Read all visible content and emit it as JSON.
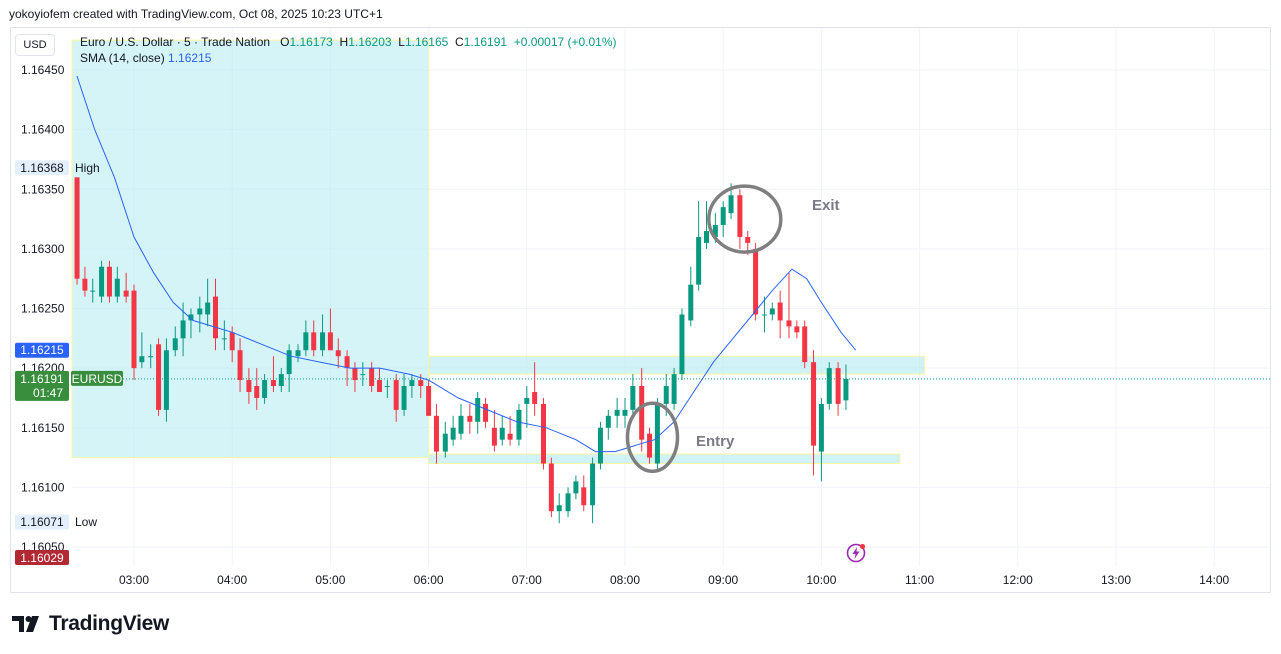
{
  "header": {
    "credit": "yokoyiofem created with TradingView.com, Oct 08, 2025 10:23 UTC+1"
  },
  "currency_button": "USD",
  "legend": {
    "symbol": "Euro / U.S. Dollar · 5 · Trade Nation",
    "open_label": "O",
    "open": "1.16173",
    "high_label": "H",
    "high": "1.16203",
    "low_label": "L",
    "low": "1.16165",
    "close_label": "C",
    "close": "1.16191",
    "change": "+0.00017 (+0.01%)",
    "sma_label": "SMA (14, close)",
    "sma_value": "1.16215"
  },
  "price_tags": {
    "high_value": "1.16368",
    "high_text": "High",
    "low_value": "1.16071",
    "low_text": "Low",
    "sma_value": "1.16215",
    "last_value": "1.16191",
    "last_symbol": "EURUSD",
    "countdown": "01:47",
    "bottom_value": "1.16029"
  },
  "annotations": {
    "exit": "Exit",
    "entry": "Entry"
  },
  "footer": {
    "brand": "TradingView"
  },
  "colors": {
    "up": "#089981",
    "down": "#f23645",
    "sma": "#2962ff",
    "zone": "#b2ebf2",
    "grid": "#f0f3fa"
  },
  "chart_data": {
    "type": "candlestick",
    "title": "Euro / U.S. Dollar · 5 · Trade Nation",
    "ylim": [
      1.16029,
      1.16475
    ],
    "y_ticks": [
      "1.16450",
      "1.16400",
      "1.16350",
      "1.16300",
      "1.16250",
      "1.16200",
      "1.16150",
      "1.16100",
      "1.16050"
    ],
    "x_ticks": [
      "03:00",
      "04:00",
      "05:00",
      "06:00",
      "07:00",
      "08:00",
      "09:00",
      "10:00",
      "11:00",
      "12:00",
      "13:00",
      "14:00"
    ],
    "x_range_hours": [
      2.6,
      14.45
    ],
    "grid": true,
    "candles": [
      {
        "t": 2.42,
        "o": 1.1636,
        "h": 1.1636,
        "l": 1.1627,
        "c": 1.16275
      },
      {
        "t": 2.5,
        "o": 1.16275,
        "h": 1.16285,
        "l": 1.1626,
        "c": 1.16265
      },
      {
        "t": 2.58,
        "o": 1.16265,
        "h": 1.16275,
        "l": 1.16255,
        "c": 1.16265
      },
      {
        "t": 2.67,
        "o": 1.1626,
        "h": 1.1629,
        "l": 1.16255,
        "c": 1.16285
      },
      {
        "t": 2.75,
        "o": 1.16285,
        "h": 1.1629,
        "l": 1.16255,
        "c": 1.1626
      },
      {
        "t": 2.83,
        "o": 1.1626,
        "h": 1.16285,
        "l": 1.16255,
        "c": 1.16275
      },
      {
        "t": 2.92,
        "o": 1.16265,
        "h": 1.1628,
        "l": 1.16255,
        "c": 1.1626
      },
      {
        "t": 3.0,
        "o": 1.16265,
        "h": 1.1627,
        "l": 1.1619,
        "c": 1.162
      },
      {
        "t": 3.08,
        "o": 1.16205,
        "h": 1.1623,
        "l": 1.162,
        "c": 1.1621
      },
      {
        "t": 3.17,
        "o": 1.1621,
        "h": 1.1622,
        "l": 1.162,
        "c": 1.1621
      },
      {
        "t": 3.25,
        "o": 1.1622,
        "h": 1.16225,
        "l": 1.1616,
        "c": 1.16165
      },
      {
        "t": 3.33,
        "o": 1.16165,
        "h": 1.16225,
        "l": 1.16155,
        "c": 1.16215
      },
      {
        "t": 3.42,
        "o": 1.16215,
        "h": 1.16235,
        "l": 1.1621,
        "c": 1.16225
      },
      {
        "t": 3.5,
        "o": 1.16225,
        "h": 1.16255,
        "l": 1.1621,
        "c": 1.1624
      },
      {
        "t": 3.58,
        "o": 1.1624,
        "h": 1.1625,
        "l": 1.16225,
        "c": 1.16245
      },
      {
        "t": 3.67,
        "o": 1.16245,
        "h": 1.1626,
        "l": 1.1623,
        "c": 1.1625
      },
      {
        "t": 3.75,
        "o": 1.16245,
        "h": 1.16275,
        "l": 1.16235,
        "c": 1.16255
      },
      {
        "t": 3.83,
        "o": 1.1626,
        "h": 1.16275,
        "l": 1.16215,
        "c": 1.16225
      },
      {
        "t": 3.92,
        "o": 1.16225,
        "h": 1.1624,
        "l": 1.16215,
        "c": 1.16225
      },
      {
        "t": 4.0,
        "o": 1.1623,
        "h": 1.16235,
        "l": 1.16205,
        "c": 1.16215
      },
      {
        "t": 4.08,
        "o": 1.16215,
        "h": 1.16225,
        "l": 1.1618,
        "c": 1.1619
      },
      {
        "t": 4.17,
        "o": 1.1619,
        "h": 1.162,
        "l": 1.1617,
        "c": 1.1618
      },
      {
        "t": 4.25,
        "o": 1.16185,
        "h": 1.162,
        "l": 1.16165,
        "c": 1.16175
      },
      {
        "t": 4.33,
        "o": 1.16175,
        "h": 1.16195,
        "l": 1.1617,
        "c": 1.1619
      },
      {
        "t": 4.42,
        "o": 1.1619,
        "h": 1.1621,
        "l": 1.1618,
        "c": 1.16185
      },
      {
        "t": 4.5,
        "o": 1.16185,
        "h": 1.162,
        "l": 1.1618,
        "c": 1.16195
      },
      {
        "t": 4.58,
        "o": 1.16195,
        "h": 1.1622,
        "l": 1.1618,
        "c": 1.16215
      },
      {
        "t": 4.67,
        "o": 1.1621,
        "h": 1.1622,
        "l": 1.16205,
        "c": 1.16215
      },
      {
        "t": 4.75,
        "o": 1.16215,
        "h": 1.1624,
        "l": 1.1621,
        "c": 1.1623
      },
      {
        "t": 4.83,
        "o": 1.1623,
        "h": 1.1624,
        "l": 1.1621,
        "c": 1.16215
      },
      {
        "t": 4.92,
        "o": 1.16215,
        "h": 1.16245,
        "l": 1.1621,
        "c": 1.1623
      },
      {
        "t": 5.0,
        "o": 1.1623,
        "h": 1.1625,
        "l": 1.16215,
        "c": 1.16215
      },
      {
        "t": 5.08,
        "o": 1.16215,
        "h": 1.16225,
        "l": 1.162,
        "c": 1.1621
      },
      {
        "t": 5.17,
        "o": 1.1621,
        "h": 1.16215,
        "l": 1.16185,
        "c": 1.162
      },
      {
        "t": 5.25,
        "o": 1.162,
        "h": 1.16205,
        "l": 1.1618,
        "c": 1.1619
      },
      {
        "t": 5.33,
        "o": 1.16195,
        "h": 1.16205,
        "l": 1.16185,
        "c": 1.16195
      },
      {
        "t": 5.42,
        "o": 1.162,
        "h": 1.16205,
        "l": 1.1618,
        "c": 1.16185
      },
      {
        "t": 5.5,
        "o": 1.1619,
        "h": 1.162,
        "l": 1.1618,
        "c": 1.1618
      },
      {
        "t": 5.58,
        "o": 1.16185,
        "h": 1.1619,
        "l": 1.16175,
        "c": 1.16185
      },
      {
        "t": 5.67,
        "o": 1.1619,
        "h": 1.16195,
        "l": 1.16155,
        "c": 1.16165
      },
      {
        "t": 5.75,
        "o": 1.16165,
        "h": 1.16195,
        "l": 1.1616,
        "c": 1.16185
      },
      {
        "t": 5.83,
        "o": 1.16185,
        "h": 1.16195,
        "l": 1.16175,
        "c": 1.1619
      },
      {
        "t": 5.92,
        "o": 1.1619,
        "h": 1.16195,
        "l": 1.16175,
        "c": 1.16185
      },
      {
        "t": 6.0,
        "o": 1.16185,
        "h": 1.1619,
        "l": 1.1616,
        "c": 1.1616
      },
      {
        "t": 6.08,
        "o": 1.1616,
        "h": 1.1617,
        "l": 1.1612,
        "c": 1.1613
      },
      {
        "t": 6.17,
        "o": 1.1613,
        "h": 1.16155,
        "l": 1.16125,
        "c": 1.16145
      },
      {
        "t": 6.25,
        "o": 1.1614,
        "h": 1.1616,
        "l": 1.16135,
        "c": 1.1615
      },
      {
        "t": 6.33,
        "o": 1.16145,
        "h": 1.1617,
        "l": 1.1614,
        "c": 1.1616
      },
      {
        "t": 6.42,
        "o": 1.1616,
        "h": 1.1617,
        "l": 1.16145,
        "c": 1.16155
      },
      {
        "t": 6.5,
        "o": 1.16155,
        "h": 1.1618,
        "l": 1.16145,
        "c": 1.16175
      },
      {
        "t": 6.58,
        "o": 1.1617,
        "h": 1.16175,
        "l": 1.1615,
        "c": 1.16155
      },
      {
        "t": 6.67,
        "o": 1.1615,
        "h": 1.16165,
        "l": 1.1613,
        "c": 1.16135
      },
      {
        "t": 6.75,
        "o": 1.1614,
        "h": 1.1616,
        "l": 1.16135,
        "c": 1.1615
      },
      {
        "t": 6.83,
        "o": 1.16145,
        "h": 1.1616,
        "l": 1.16135,
        "c": 1.1614
      },
      {
        "t": 6.92,
        "o": 1.1614,
        "h": 1.1617,
        "l": 1.16135,
        "c": 1.16165
      },
      {
        "t": 7.0,
        "o": 1.1617,
        "h": 1.16185,
        "l": 1.1615,
        "c": 1.16175
      },
      {
        "t": 7.08,
        "o": 1.1618,
        "h": 1.16205,
        "l": 1.1616,
        "c": 1.1617
      },
      {
        "t": 7.17,
        "o": 1.1617,
        "h": 1.16175,
        "l": 1.16115,
        "c": 1.1612
      },
      {
        "t": 7.25,
        "o": 1.1612,
        "h": 1.16125,
        "l": 1.16075,
        "c": 1.1608
      },
      {
        "t": 7.33,
        "o": 1.1608,
        "h": 1.16095,
        "l": 1.1607,
        "c": 1.16085
      },
      {
        "t": 7.42,
        "o": 1.1608,
        "h": 1.161,
        "l": 1.16075,
        "c": 1.16095
      },
      {
        "t": 7.5,
        "o": 1.16095,
        "h": 1.1611,
        "l": 1.1609,
        "c": 1.16105
      },
      {
        "t": 7.58,
        "o": 1.161,
        "h": 1.1611,
        "l": 1.1608,
        "c": 1.16085
      },
      {
        "t": 7.67,
        "o": 1.16085,
        "h": 1.16125,
        "l": 1.1607,
        "c": 1.1612
      },
      {
        "t": 7.75,
        "o": 1.1612,
        "h": 1.16155,
        "l": 1.16115,
        "c": 1.1615
      },
      {
        "t": 7.83,
        "o": 1.1615,
        "h": 1.16165,
        "l": 1.1614,
        "c": 1.1616
      },
      {
        "t": 7.92,
        "o": 1.1616,
        "h": 1.16175,
        "l": 1.1615,
        "c": 1.16165
      },
      {
        "t": 8.0,
        "o": 1.1616,
        "h": 1.16175,
        "l": 1.1615,
        "c": 1.16165
      },
      {
        "t": 8.08,
        "o": 1.16165,
        "h": 1.16195,
        "l": 1.1616,
        "c": 1.16185
      },
      {
        "t": 8.17,
        "o": 1.16185,
        "h": 1.162,
        "l": 1.1613,
        "c": 1.1614
      },
      {
        "t": 8.25,
        "o": 1.16145,
        "h": 1.1615,
        "l": 1.1612,
        "c": 1.16125
      },
      {
        "t": 8.33,
        "o": 1.1612,
        "h": 1.16175,
        "l": 1.16115,
        "c": 1.1617
      },
      {
        "t": 8.42,
        "o": 1.1617,
        "h": 1.16195,
        "l": 1.1616,
        "c": 1.16185
      },
      {
        "t": 8.5,
        "o": 1.1617,
        "h": 1.162,
        "l": 1.16165,
        "c": 1.16195
      },
      {
        "t": 8.58,
        "o": 1.16195,
        "h": 1.1625,
        "l": 1.1619,
        "c": 1.16245
      },
      {
        "t": 8.67,
        "o": 1.1624,
        "h": 1.16285,
        "l": 1.16235,
        "c": 1.1627
      },
      {
        "t": 8.75,
        "o": 1.1627,
        "h": 1.1634,
        "l": 1.16265,
        "c": 1.1631
      },
      {
        "t": 8.83,
        "o": 1.16305,
        "h": 1.1634,
        "l": 1.163,
        "c": 1.16315
      },
      {
        "t": 8.92,
        "o": 1.1631,
        "h": 1.1633,
        "l": 1.16305,
        "c": 1.1632
      },
      {
        "t": 9.0,
        "o": 1.1632,
        "h": 1.1634,
        "l": 1.1631,
        "c": 1.16335
      },
      {
        "t": 9.08,
        "o": 1.1633,
        "h": 1.16355,
        "l": 1.16325,
        "c": 1.16345
      },
      {
        "t": 9.17,
        "o": 1.16345,
        "h": 1.1635,
        "l": 1.163,
        "c": 1.1631
      },
      {
        "t": 9.25,
        "o": 1.1631,
        "h": 1.16315,
        "l": 1.16295,
        "c": 1.16305
      },
      {
        "t": 9.33,
        "o": 1.163,
        "h": 1.16305,
        "l": 1.1624,
        "c": 1.16245
      },
      {
        "t": 9.42,
        "o": 1.16245,
        "h": 1.1626,
        "l": 1.1623,
        "c": 1.16245
      },
      {
        "t": 9.5,
        "o": 1.16245,
        "h": 1.16255,
        "l": 1.1624,
        "c": 1.1625
      },
      {
        "t": 9.58,
        "o": 1.16255,
        "h": 1.16265,
        "l": 1.16225,
        "c": 1.1624
      },
      {
        "t": 9.67,
        "o": 1.1624,
        "h": 1.1628,
        "l": 1.16225,
        "c": 1.16235
      },
      {
        "t": 9.75,
        "o": 1.16235,
        "h": 1.1624,
        "l": 1.16225,
        "c": 1.1623
      },
      {
        "t": 9.83,
        "o": 1.16235,
        "h": 1.1624,
        "l": 1.162,
        "c": 1.16205
      },
      {
        "t": 9.92,
        "o": 1.16205,
        "h": 1.16215,
        "l": 1.1611,
        "c": 1.16135
      },
      {
        "t": 10.0,
        "o": 1.1613,
        "h": 1.16175,
        "l": 1.16105,
        "c": 1.1617
      },
      {
        "t": 10.08,
        "o": 1.1617,
        "h": 1.16205,
        "l": 1.16165,
        "c": 1.162
      },
      {
        "t": 10.17,
        "o": 1.162,
        "h": 1.16205,
        "l": 1.1616,
        "c": 1.1617
      },
      {
        "t": 10.25,
        "o": 1.16173,
        "h": 1.16203,
        "l": 1.16165,
        "c": 1.16191
      }
    ],
    "sma": {
      "name": "SMA (14, close)",
      "points": [
        [
          2.42,
          1.16445
        ],
        [
          2.6,
          1.164
        ],
        [
          2.8,
          1.1636
        ],
        [
          3.0,
          1.1631
        ],
        [
          3.2,
          1.1628
        ],
        [
          3.4,
          1.16255
        ],
        [
          3.6,
          1.1624
        ],
        [
          3.8,
          1.16235
        ],
        [
          4.0,
          1.1623
        ],
        [
          4.3,
          1.1622
        ],
        [
          4.6,
          1.1621
        ],
        [
          4.9,
          1.16205
        ],
        [
          5.2,
          1.162
        ],
        [
          5.5,
          1.162
        ],
        [
          5.8,
          1.16195
        ],
        [
          6.0,
          1.1619
        ],
        [
          6.3,
          1.16175
        ],
        [
          6.6,
          1.16165
        ],
        [
          6.9,
          1.16155
        ],
        [
          7.2,
          1.1615
        ],
        [
          7.5,
          1.1614
        ],
        [
          7.7,
          1.1613
        ],
        [
          7.9,
          1.1613
        ],
        [
          8.1,
          1.16135
        ],
        [
          8.3,
          1.1614
        ],
        [
          8.5,
          1.16155
        ],
        [
          8.7,
          1.1618
        ],
        [
          8.9,
          1.16205
        ],
        [
          9.1,
          1.16225
        ],
        [
          9.3,
          1.16245
        ],
        [
          9.5,
          1.16265
        ],
        [
          9.7,
          1.16283
        ],
        [
          9.85,
          1.16275
        ],
        [
          10.0,
          1.16255
        ],
        [
          10.2,
          1.1623
        ],
        [
          10.35,
          1.16215
        ]
      ]
    },
    "zones": [
      {
        "t0": 2.42,
        "t1": 6.0,
        "y0": 1.16475,
        "y1": 1.16125
      },
      {
        "t0": 6.0,
        "t1": 11.05,
        "y0": 1.1621,
        "y1": 1.16195
      },
      {
        "t0": 6.0,
        "t1": 10.8,
        "y0": 1.16128,
        "y1": 1.1612
      }
    ],
    "circles": [
      {
        "t": 9.22,
        "y": 1.16325,
        "label": "exit"
      },
      {
        "t": 8.28,
        "y": 1.16142,
        "label": "entry"
      }
    ]
  }
}
